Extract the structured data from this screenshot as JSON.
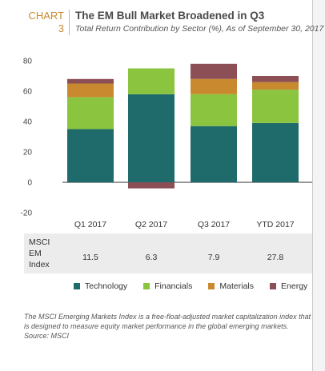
{
  "header": {
    "chart_word": "CHART",
    "chart_number": "3",
    "title": "The EM Bull Market Broadened in Q3",
    "subtitle": "Total Return Contribution by Sector (%), As of September 30, 2017"
  },
  "chart_data": {
    "type": "bar",
    "stacked": true,
    "categories": [
      "Q1 2017",
      "Q2 2017",
      "Q3 2017",
      "YTD 2017"
    ],
    "series": [
      {
        "name": "Technology",
        "color": "#1f6b6b",
        "values": [
          35,
          58,
          37,
          39
        ]
      },
      {
        "name": "Financials",
        "color": "#8bc43f",
        "values": [
          21,
          17,
          21,
          22
        ]
      },
      {
        "name": "Materials",
        "color": "#c98a2f",
        "values": [
          9,
          0,
          10,
          5
        ]
      },
      {
        "name": "Energy",
        "color": "#8c4f55",
        "values": [
          3,
          -4,
          10,
          4
        ]
      }
    ],
    "ylim": [
      -20,
      80
    ],
    "yticks": [
      80,
      60,
      40,
      20,
      0,
      -20
    ],
    "grid": false
  },
  "index_row": {
    "label_lines": [
      "MSCI",
      "EM",
      "Index"
    ],
    "values": [
      "11.5",
      "6.3",
      "7.9",
      "27.8"
    ]
  },
  "note": {
    "text": "The MSCI Emerging Markets Index is a free-float-adjusted market capitalization index that is designed to measure equity market performance in the global emerging markets.",
    "source": "Source: MSCI"
  }
}
